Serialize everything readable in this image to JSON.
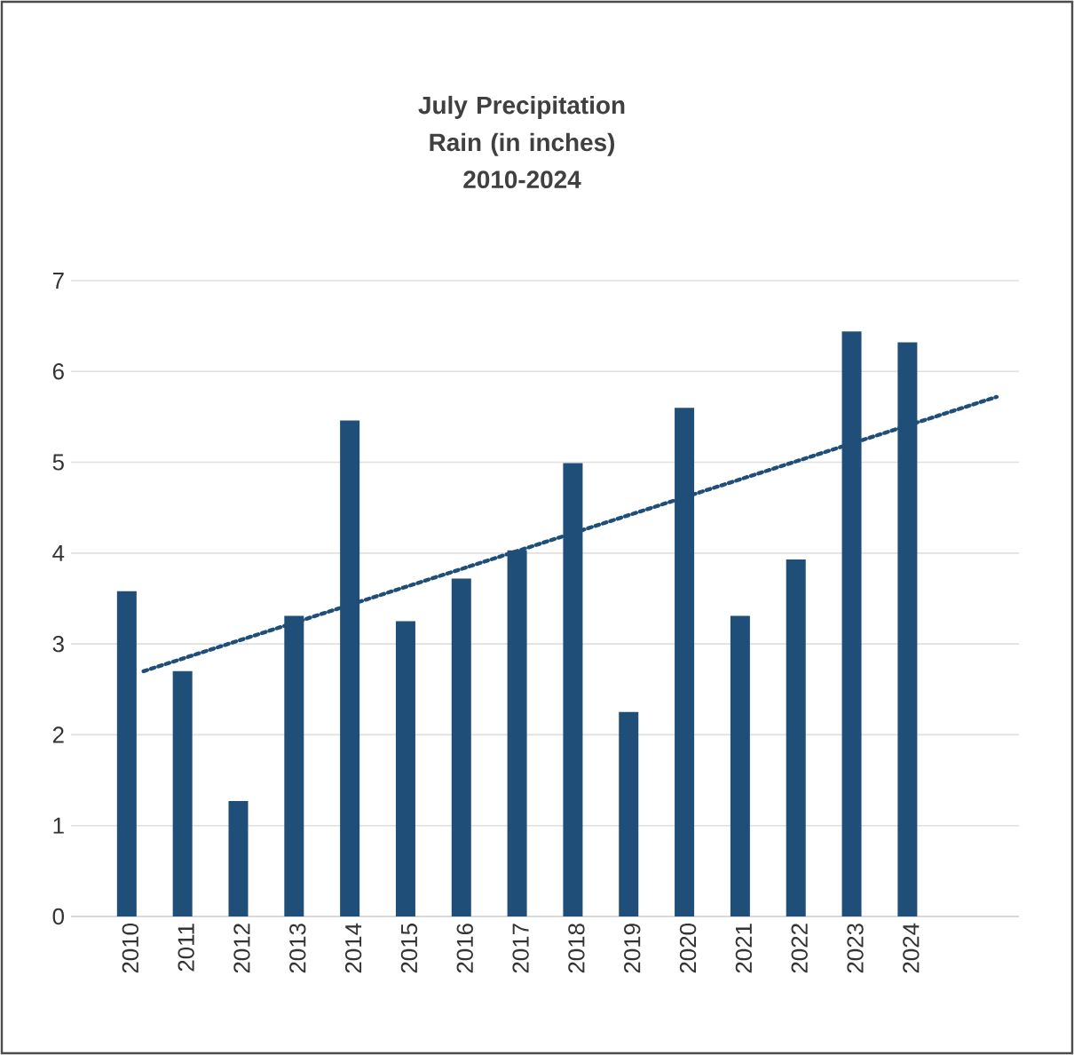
{
  "chart_data": {
    "type": "bar",
    "title": "July Precipitation Rain (in inches) 2010-2024",
    "x": [
      2010,
      2011,
      2012,
      2013,
      2014,
      2015,
      2016,
      2017,
      2018,
      2019,
      2020,
      2021,
      2022,
      2023,
      2024
    ],
    "xlim": [
      2009,
      2026
    ],
    "xticks": [
      2010,
      2011,
      2012,
      2013,
      2014,
      2015,
      2016,
      2017,
      2018,
      2019,
      2020,
      2021,
      2022,
      2023,
      2024
    ],
    "ylim": [
      0,
      7
    ],
    "yticks": [
      0,
      1,
      2,
      3,
      4,
      5,
      6,
      7
    ],
    "grid": "y",
    "series": [
      {
        "color": "#1f4e79",
        "values": [
          3.58,
          2.7,
          1.27,
          3.31,
          5.46,
          3.25,
          3.72,
          4.03,
          4.99,
          2.25,
          5.6,
          3.31,
          3.93,
          6.44,
          6.32
        ]
      },
      {
        "type": "line",
        "color": "#1f4e79",
        "line_style": "dotted",
        "marker": "none",
        "x": [
          2010.3,
          2025.6
        ],
        "values": [
          2.7,
          5.72
        ]
      }
    ]
  }
}
